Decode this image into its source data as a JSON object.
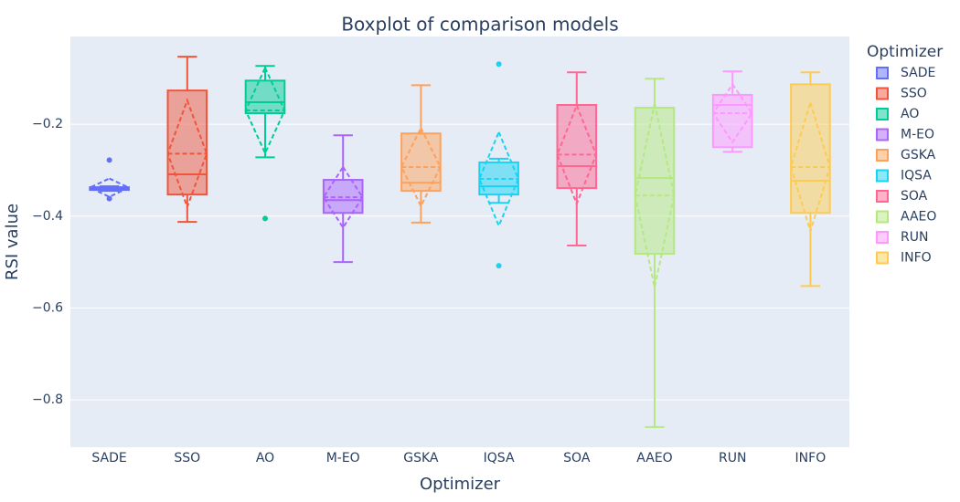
{
  "chart_data": {
    "type": "box",
    "title": "Boxplot of comparison models",
    "x_label": "Optimizer",
    "y_label": "RSI value",
    "legend_title": "Optimizer",
    "categories": [
      "SADE",
      "SSO",
      "AO",
      "M-EO",
      "GSKA",
      "IQSA",
      "SOA",
      "AAEO",
      "RUN",
      "INFO"
    ],
    "ylim": [
      -0.903,
      -0.009
    ],
    "yticks": [
      {
        "value": -0.2,
        "label": "−0.2"
      },
      {
        "value": -0.4,
        "label": "−0.4"
      },
      {
        "value": -0.6,
        "label": "−0.6"
      },
      {
        "value": -0.8,
        "label": "−0.8"
      }
    ],
    "grid": true,
    "series": [
      {
        "name": "SADE",
        "color": "#636efa",
        "q1": -0.343,
        "median": -0.34,
        "q3": -0.337,
        "lowerfence": -0.345,
        "upperfence": -0.335,
        "mean": -0.338,
        "sd": 0.02,
        "outliers": [
          -0.278,
          -0.362
        ]
      },
      {
        "name": "SSO",
        "color": "#EF553B",
        "q1": -0.353,
        "median": -0.309,
        "q3": -0.1265,
        "lowerfence": -0.4125,
        "upperfence": -0.053,
        "mean": -0.264,
        "sd": 0.116,
        "outliers": []
      },
      {
        "name": "AO",
        "color": "#00cc96",
        "q1": -0.176,
        "median": -0.152,
        "q3": -0.105,
        "lowerfence": -0.272,
        "upperfence": -0.073,
        "mean": -0.17,
        "sd": 0.093,
        "outliers": [
          -0.405
        ]
      },
      {
        "name": "M-EO",
        "color": "#ab63fa",
        "q1": -0.393,
        "median": -0.365,
        "q3": -0.321,
        "lowerfence": -0.5,
        "upperfence": -0.224,
        "mean": -0.359,
        "sd": 0.066,
        "outliers": []
      },
      {
        "name": "GSKA",
        "color": "#FFA15A",
        "q1": -0.345,
        "median": -0.327,
        "q3": -0.22,
        "lowerfence": -0.414,
        "upperfence": -0.115,
        "mean": -0.293,
        "sd": 0.085,
        "outliers": []
      },
      {
        "name": "IQSA",
        "color": "#19d3f3",
        "q1": -0.353,
        "median": -0.335,
        "q3": -0.283,
        "lowerfence": -0.371,
        "upperfence": -0.275,
        "mean": -0.319,
        "sd": 0.102,
        "outliers": [
          -0.069,
          -0.508
        ]
      },
      {
        "name": "SOA",
        "color": "#FF6692",
        "q1": -0.339,
        "median": -0.291,
        "q3": -0.158,
        "lowerfence": -0.464,
        "upperfence": -0.087,
        "mean": -0.266,
        "sd": 0.107,
        "outliers": []
      },
      {
        "name": "AAEO",
        "color": "#B6E880",
        "q1": -0.482,
        "median": -0.317,
        "q3": -0.164,
        "lowerfence": -0.859,
        "upperfence": -0.101,
        "mean": -0.355,
        "sd": 0.2,
        "outliers": []
      },
      {
        "name": "RUN",
        "color": "#FF97FF",
        "q1": -0.25,
        "median": -0.158,
        "q3": -0.136,
        "lowerfence": -0.26,
        "upperfence": -0.085,
        "mean": -0.176,
        "sd": 0.063,
        "outliers": []
      },
      {
        "name": "INFO",
        "color": "#FECB52",
        "q1": -0.393,
        "median": -0.323,
        "q3": -0.113,
        "lowerfence": -0.552,
        "upperfence": -0.087,
        "mean": -0.293,
        "sd": 0.14,
        "outliers": []
      }
    ]
  }
}
